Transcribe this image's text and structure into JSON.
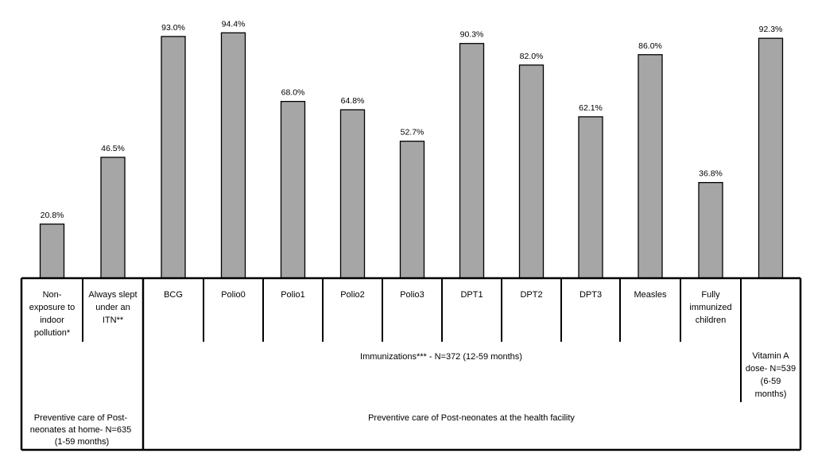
{
  "chart_data": {
    "type": "bar",
    "categories": [
      [
        "Non-",
        "exposure to",
        "indoor",
        "pollution*"
      ],
      [
        "Always slept",
        "under an",
        "ITN**"
      ],
      [
        "BCG"
      ],
      [
        "Polio0"
      ],
      [
        "Polio1"
      ],
      [
        "Polio2"
      ],
      [
        "Polio3"
      ],
      [
        "DPT1"
      ],
      [
        "DPT2"
      ],
      [
        "DPT3"
      ],
      [
        "Measles"
      ],
      [
        "Fully",
        "immunized",
        "children"
      ],
      [
        "Vitamin A",
        "dose- N=539",
        "(6-59",
        "months)"
      ]
    ],
    "values": [
      20.8,
      46.5,
      93.0,
      94.4,
      68.0,
      64.8,
      52.7,
      90.3,
      82.0,
      62.1,
      86.0,
      36.8,
      92.3
    ],
    "value_labels": [
      "20.8%",
      "46.5%",
      "93.0%",
      "94.4%",
      "68.0%",
      "64.8%",
      "52.7%",
      "90.3%",
      "82.0%",
      "62.1%",
      "86.0%",
      "36.8%",
      "92.3%"
    ],
    "ylim": [
      0,
      100
    ],
    "bar_color": "#a6a6a6",
    "groups": {
      "immunizations": "Immunizations*** - N=372 (12-59 months)",
      "home": [
        "Preventive care of Post-",
        "neonates at home- N=635",
        "(1-59 months)"
      ],
      "facility": "Preventive care of Post-neonates at the health facility"
    }
  }
}
